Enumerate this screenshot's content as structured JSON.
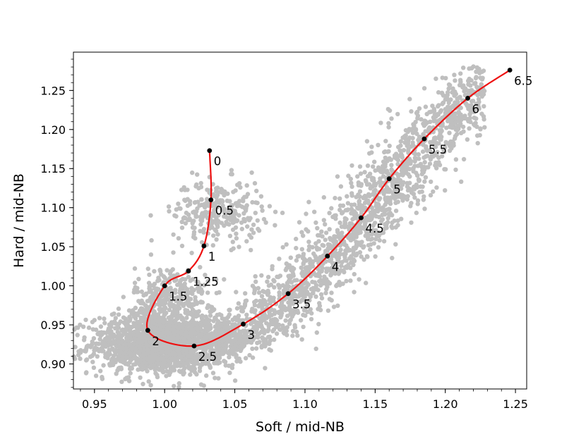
{
  "chart_data": {
    "type": "scatter",
    "xlabel": "Soft / mid-NB",
    "ylabel": "Hard / mid-NB",
    "xlim": [
      0.935,
      1.258
    ],
    "ylim": [
      0.868,
      1.299
    ],
    "x_ticks": [
      0.95,
      1.0,
      1.05,
      1.1,
      1.15,
      1.2,
      1.25
    ],
    "x_tick_labels": [
      "0.95",
      "1.00",
      "1.05",
      "1.10",
      "1.15",
      "1.20",
      "1.25"
    ],
    "y_ticks": [
      0.9,
      0.95,
      1.0,
      1.05,
      1.1,
      1.15,
      1.2,
      1.25
    ],
    "y_tick_labels": [
      "0.90",
      "0.95",
      "1.00",
      "1.05",
      "1.10",
      "1.15",
      "1.20",
      "1.25"
    ],
    "grid": false,
    "colors": {
      "scatter": "#bfbfbf",
      "curve": "#ee1111",
      "marker": "#000000"
    },
    "series": [
      {
        "type": "line",
        "points": [
          {
            "label": "0",
            "x": 1.032,
            "y": 1.173
          },
          {
            "label": "0.5",
            "x": 1.033,
            "y": 1.11
          },
          {
            "label": "1",
            "x": 1.028,
            "y": 1.051
          },
          {
            "label": "1.25",
            "x": 1.017,
            "y": 1.019
          },
          {
            "label": "1.5",
            "x": 1.0,
            "y": 1.0
          },
          {
            "label": "2",
            "x": 0.988,
            "y": 0.943
          },
          {
            "label": "2.5",
            "x": 1.021,
            "y": 0.923
          },
          {
            "label": "3",
            "x": 1.056,
            "y": 0.951
          },
          {
            "label": "3.5",
            "x": 1.088,
            "y": 0.99
          },
          {
            "label": "4",
            "x": 1.116,
            "y": 1.038
          },
          {
            "label": "4.5",
            "x": 1.14,
            "y": 1.087
          },
          {
            "label": "5",
            "x": 1.16,
            "y": 1.137
          },
          {
            "label": "5.5",
            "x": 1.185,
            "y": 1.188
          },
          {
            "label": "6",
            "x": 1.216,
            "y": 1.24
          },
          {
            "label": "6.5",
            "x": 1.246,
            "y": 1.276
          }
        ]
      }
    ]
  }
}
